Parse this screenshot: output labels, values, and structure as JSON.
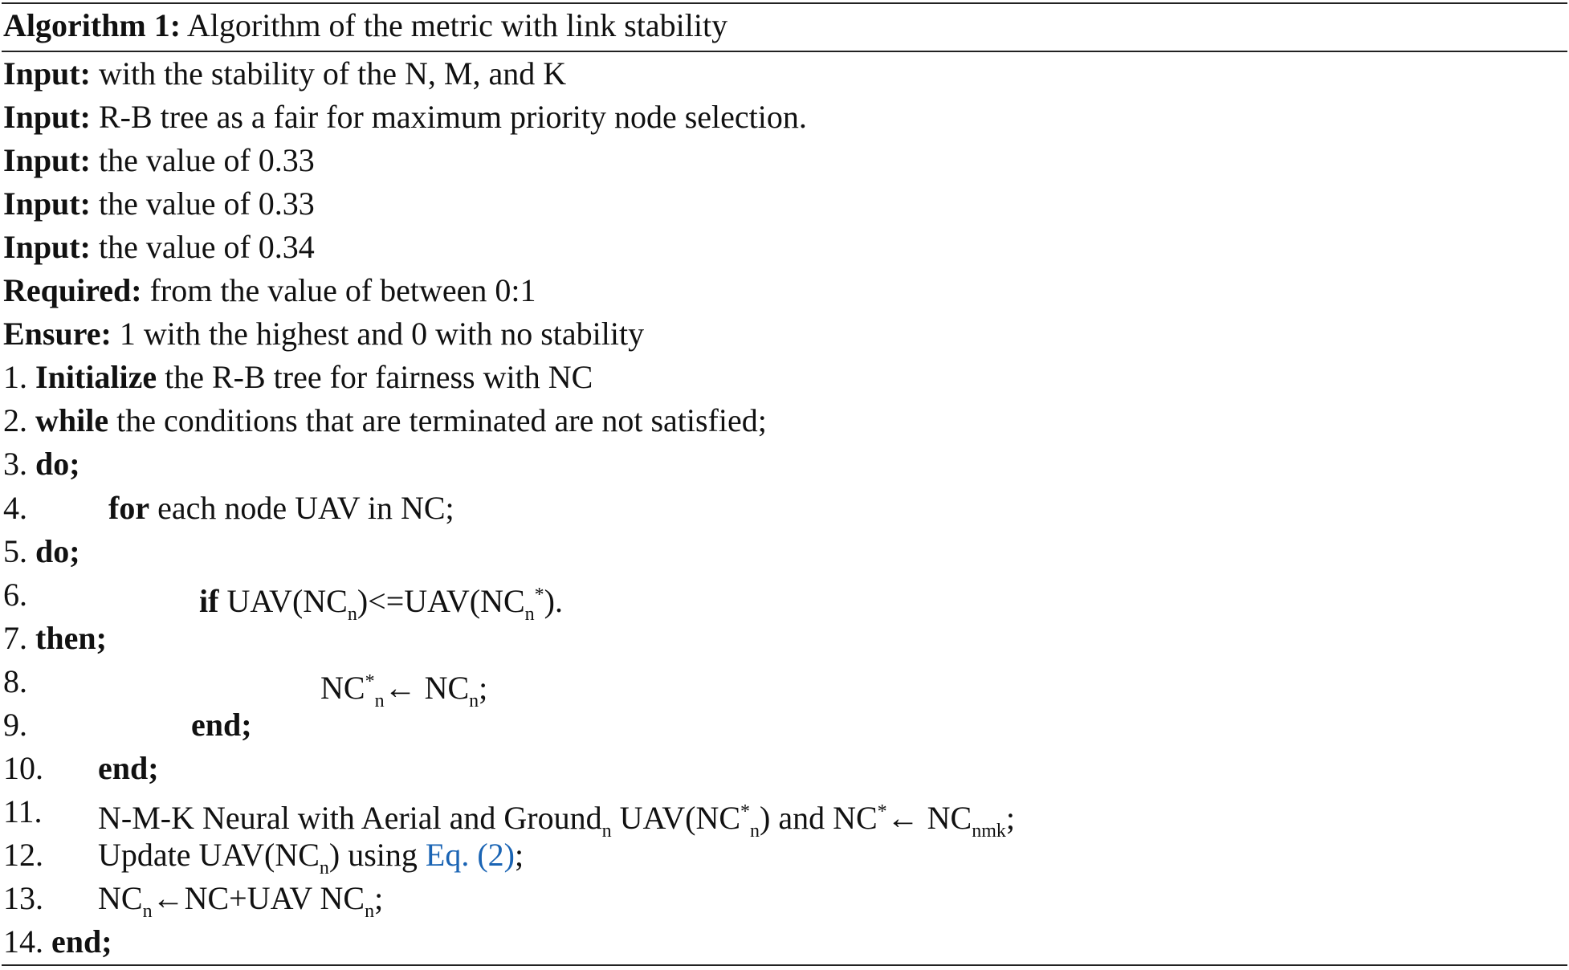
{
  "title": {
    "label": "Algorithm 1:",
    "text": " Algorithm of the metric with link stability"
  },
  "lines": [
    {
      "num": "",
      "indent": 0,
      "parts": [
        {
          "t": "Input:",
          "s": "b"
        },
        {
          "t": " with the stability of the N, M, and K"
        }
      ]
    },
    {
      "num": "",
      "indent": 0,
      "parts": [
        {
          "t": "Input:",
          "s": "b"
        },
        {
          "t": " R-B tree as a fair for maximum priority node selection."
        }
      ]
    },
    {
      "num": "",
      "indent": 0,
      "parts": [
        {
          "t": "Input:",
          "s": "b"
        },
        {
          "t": " the value of 0.33"
        }
      ]
    },
    {
      "num": "",
      "indent": 0,
      "parts": [
        {
          "t": "Input:",
          "s": "b"
        },
        {
          "t": " the value of 0.33"
        }
      ]
    },
    {
      "num": "",
      "indent": 0,
      "parts": [
        {
          "t": "Input:",
          "s": "b"
        },
        {
          "t": " the value of 0.34"
        }
      ]
    },
    {
      "num": "",
      "indent": 0,
      "parts": [
        {
          "t": "Required:",
          "s": "b"
        },
        {
          "t": " from the value of between 0:1"
        }
      ]
    },
    {
      "num": "",
      "indent": 0,
      "parts": [
        {
          "t": "Ensure:",
          "s": "b"
        },
        {
          "t": " 1 with the highest and 0 with no stability"
        }
      ]
    },
    {
      "num": "1. ",
      "indent": 0,
      "parts": [
        {
          "t": "Initialize",
          "s": "b"
        },
        {
          "t": " the R-B tree for fairness with NC"
        }
      ]
    },
    {
      "num": "2. ",
      "indent": 0,
      "parts": [
        {
          "t": "while",
          "s": "b"
        },
        {
          "t": " the conditions that are terminated are not satisfied;"
        }
      ]
    },
    {
      "num": "3. ",
      "indent": 0,
      "parts": [
        {
          "t": "do;",
          "s": "b"
        }
      ]
    },
    {
      "num": "4.",
      "indent": 131,
      "parts": [
        {
          "t": "for",
          "s": "b"
        },
        {
          "t": " each node UAV in NC;"
        }
      ]
    },
    {
      "num": "5. ",
      "indent": 0,
      "parts": [
        {
          "t": "do;",
          "s": "b"
        }
      ]
    },
    {
      "num": "6.",
      "indent": 244,
      "parts": [
        {
          "t": "if",
          "s": "b"
        },
        {
          "t": " UAV(NC"
        },
        {
          "t": "n",
          "s": "sub"
        },
        {
          "t": ")<=UAV(NC"
        },
        {
          "t": "n",
          "s": "sub"
        },
        {
          "t": "*",
          "s": "sup"
        },
        {
          "t": ")."
        }
      ]
    },
    {
      "num": "7. ",
      "indent": 0,
      "parts": [
        {
          "t": "then;",
          "s": "b"
        }
      ]
    },
    {
      "num": "8.",
      "indent": 395,
      "parts": [
        {
          "t": "NC"
        },
        {
          "t": "*",
          "s": "sup"
        },
        {
          "t": "n",
          "s": "sub"
        },
        {
          "t": "← NC"
        },
        {
          "t": "n",
          "s": "sub"
        },
        {
          "t": ";"
        }
      ]
    },
    {
      "num": "9.",
      "indent": 234,
      "parts": [
        {
          "t": "end;",
          "s": "b"
        }
      ]
    },
    {
      "num": "10.",
      "indent": 118,
      "parts": [
        {
          "t": "end;",
          "s": "b"
        }
      ]
    },
    {
      "num": "11.",
      "indent": 118,
      "parts": [
        {
          "t": "N-M-K Neural with Aerial and Ground"
        },
        {
          "t": "n",
          "s": "sub"
        },
        {
          "t": " UAV(NC"
        },
        {
          "t": "*",
          "s": "sup"
        },
        {
          "t": "n",
          "s": "sub"
        },
        {
          "t": ") and NC"
        },
        {
          "t": "*",
          "s": "sup"
        },
        {
          "t": "← NC"
        },
        {
          "t": "nmk",
          "s": "sub"
        },
        {
          "t": ";"
        }
      ]
    },
    {
      "num": "12.",
      "indent": 118,
      "parts": [
        {
          "t": "Update UAV(NC"
        },
        {
          "t": "n",
          "s": "sub"
        },
        {
          "t": ") using "
        },
        {
          "t": "Eq. (2)",
          "s": "link"
        },
        {
          "t": ";"
        }
      ]
    },
    {
      "num": "13.",
      "indent": 118,
      "parts": [
        {
          "t": "NC"
        },
        {
          "t": "n",
          "s": "sub"
        },
        {
          "t": "←NC+UAV NC"
        },
        {
          "t": "n",
          "s": "sub"
        },
        {
          "t": ";"
        }
      ]
    },
    {
      "num": "14. ",
      "indent": 0,
      "parts": [
        {
          "t": "end;",
          "s": "b"
        }
      ]
    }
  ],
  "colors": {
    "link": "#1a64b4",
    "rule": "#222222"
  }
}
